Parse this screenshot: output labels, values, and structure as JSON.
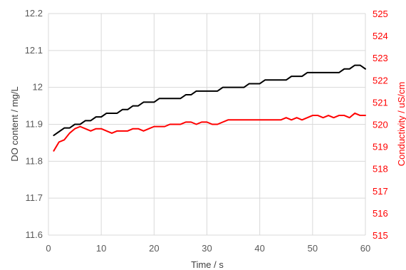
{
  "chart_data": {
    "type": "line",
    "xlabel": "Time / s",
    "ylabel_left": "DO content / mg/L",
    "ylabel_right": "Conductivity / uS/cm",
    "xlim": [
      0,
      60
    ],
    "ylim_left": [
      11.6,
      12.2
    ],
    "ylim_right": [
      515,
      525
    ],
    "x_ticks": [
      "0",
      "10",
      "20",
      "30",
      "40",
      "50",
      "60"
    ],
    "y_left_ticks": [
      "11.6",
      "11.7",
      "11.8",
      "11.9",
      "12",
      "12.1",
      "12.2"
    ],
    "y_right_ticks": [
      "515",
      "516",
      "517",
      "518",
      "519",
      "520",
      "521",
      "522",
      "523",
      "524",
      "525"
    ],
    "grid": true,
    "colors": {
      "do": "#000000",
      "conductivity": "#ff0000",
      "grid": "#d9d9d9",
      "right_axis_text": "#ff0000"
    },
    "series": [
      {
        "axis": "left",
        "color": "#000000",
        "x": [
          1,
          2,
          3,
          4,
          5,
          6,
          7,
          8,
          9,
          10,
          11,
          12,
          13,
          14,
          15,
          16,
          17,
          18,
          19,
          20,
          21,
          22,
          23,
          24,
          25,
          26,
          27,
          28,
          29,
          30,
          31,
          32,
          33,
          34,
          35,
          36,
          37,
          38,
          39,
          40,
          41,
          42,
          43,
          44,
          45,
          46,
          47,
          48,
          49,
          50,
          51,
          52,
          53,
          54,
          55,
          56,
          57,
          58,
          59,
          60
        ],
        "y": [
          11.87,
          11.88,
          11.89,
          11.89,
          11.9,
          11.9,
          11.91,
          11.91,
          11.92,
          11.92,
          11.93,
          11.93,
          11.93,
          11.94,
          11.94,
          11.95,
          11.95,
          11.96,
          11.96,
          11.96,
          11.97,
          11.97,
          11.97,
          11.97,
          11.97,
          11.98,
          11.98,
          11.99,
          11.99,
          11.99,
          11.99,
          11.99,
          12.0,
          12.0,
          12.0,
          12.0,
          12.0,
          12.01,
          12.01,
          12.01,
          12.02,
          12.02,
          12.02,
          12.02,
          12.02,
          12.03,
          12.03,
          12.03,
          12.04,
          12.04,
          12.04,
          12.04,
          12.04,
          12.04,
          12.04,
          12.05,
          12.05,
          12.06,
          12.06,
          12.05
        ]
      },
      {
        "axis": "right",
        "color": "#ff0000",
        "x": [
          1,
          2,
          3,
          4,
          5,
          6,
          7,
          8,
          9,
          10,
          11,
          12,
          13,
          14,
          15,
          16,
          17,
          18,
          19,
          20,
          21,
          22,
          23,
          24,
          25,
          26,
          27,
          28,
          29,
          30,
          31,
          32,
          33,
          34,
          35,
          36,
          37,
          38,
          39,
          40,
          41,
          42,
          43,
          44,
          45,
          46,
          47,
          48,
          49,
          50,
          51,
          52,
          53,
          54,
          55,
          56,
          57,
          58,
          59,
          60
        ],
        "y": [
          518.8,
          519.2,
          519.3,
          519.6,
          519.8,
          519.9,
          519.8,
          519.7,
          519.8,
          519.8,
          519.7,
          519.6,
          519.7,
          519.7,
          519.7,
          519.8,
          519.8,
          519.7,
          519.8,
          519.9,
          519.9,
          519.9,
          520.0,
          520.0,
          520.0,
          520.1,
          520.1,
          520.0,
          520.1,
          520.1,
          520.0,
          520.0,
          520.1,
          520.2,
          520.2,
          520.2,
          520.2,
          520.2,
          520.2,
          520.2,
          520.2,
          520.2,
          520.2,
          520.2,
          520.3,
          520.2,
          520.3,
          520.2,
          520.3,
          520.4,
          520.4,
          520.3,
          520.4,
          520.3,
          520.4,
          520.4,
          520.3,
          520.5,
          520.4,
          520.4
        ]
      }
    ]
  }
}
